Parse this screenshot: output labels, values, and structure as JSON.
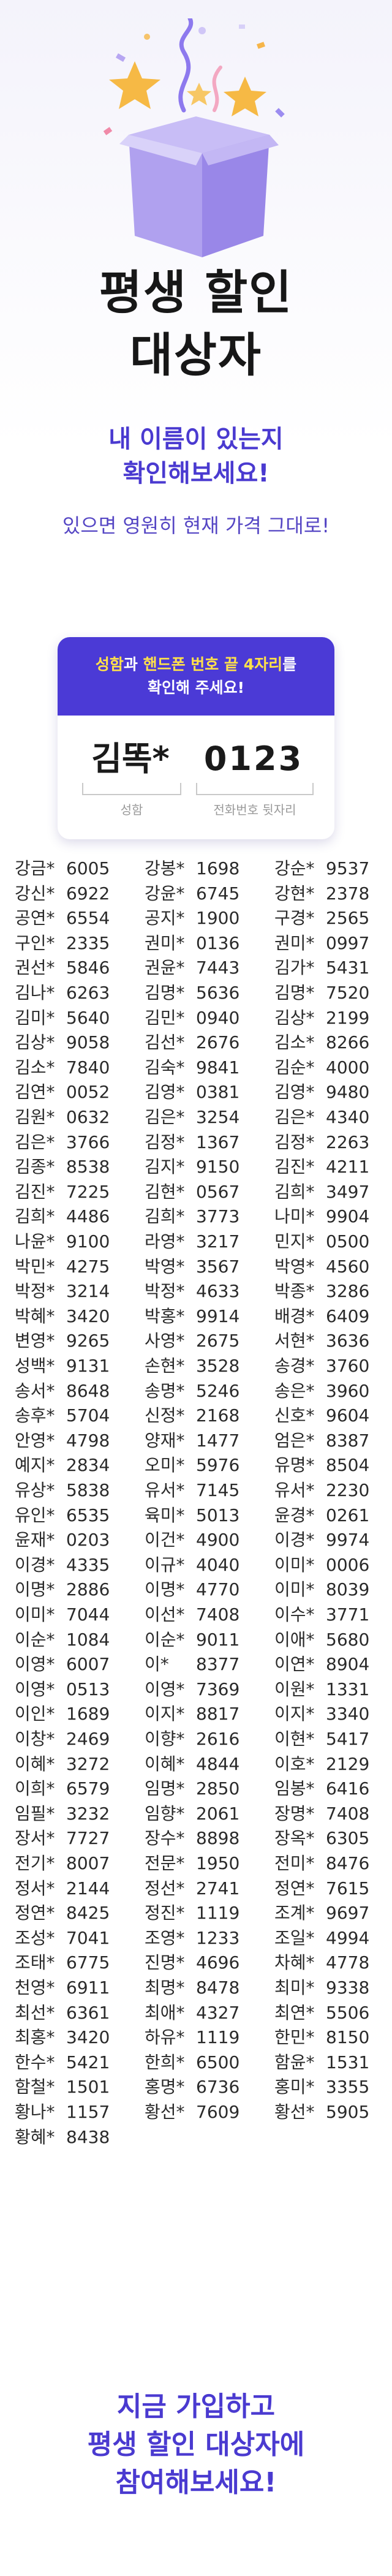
{
  "hero": {
    "title_line1": "평생 할인",
    "title_line2": "대상자",
    "subtitle_line1": "내 이름이 있는지",
    "subtitle_line2": "확인해보세요!",
    "note": "있으면 영원히 현재 가격 그대로!"
  },
  "card": {
    "header_part1": "성함",
    "header_part2": "과 ",
    "header_part3": "핸드폰 번호 끝 4자리",
    "header_part4": "를",
    "header_line2": "확인해 주세요!",
    "example_name": "김똑*",
    "example_number": "0123",
    "name_caption": "성함",
    "number_caption": "전화번호 뒷자리"
  },
  "entries": [
    [
      "강금*",
      "6005"
    ],
    [
      "강봉*",
      "1698"
    ],
    [
      "강순*",
      "9537"
    ],
    [
      "강신*",
      "6922"
    ],
    [
      "강윤*",
      "6745"
    ],
    [
      "강현*",
      "2378"
    ],
    [
      "공연*",
      "6554"
    ],
    [
      "공지*",
      "1900"
    ],
    [
      "구경*",
      "2565"
    ],
    [
      "구인*",
      "2335"
    ],
    [
      "권미*",
      "0136"
    ],
    [
      "권미*",
      "0997"
    ],
    [
      "권선*",
      "5846"
    ],
    [
      "권윤*",
      "7443"
    ],
    [
      "김가*",
      "5431"
    ],
    [
      "김나*",
      "6263"
    ],
    [
      "김명*",
      "5636"
    ],
    [
      "김명*",
      "7520"
    ],
    [
      "김미*",
      "5640"
    ],
    [
      "김민*",
      "0940"
    ],
    [
      "김상*",
      "2199"
    ],
    [
      "김상*",
      "9058"
    ],
    [
      "김선*",
      "2676"
    ],
    [
      "김소*",
      "8266"
    ],
    [
      "김소*",
      "7840"
    ],
    [
      "김숙*",
      "9841"
    ],
    [
      "김순*",
      "4000"
    ],
    [
      "김연*",
      "0052"
    ],
    [
      "김영*",
      "0381"
    ],
    [
      "김영*",
      "9480"
    ],
    [
      "김원*",
      "0632"
    ],
    [
      "김은*",
      "3254"
    ],
    [
      "김은*",
      "4340"
    ],
    [
      "김은*",
      "3766"
    ],
    [
      "김정*",
      "1367"
    ],
    [
      "김정*",
      "2263"
    ],
    [
      "김종*",
      "8538"
    ],
    [
      "김지*",
      "9150"
    ],
    [
      "김진*",
      "4211"
    ],
    [
      "김진*",
      "7225"
    ],
    [
      "김현*",
      "0567"
    ],
    [
      "김희*",
      "3497"
    ],
    [
      "김희*",
      "4486"
    ],
    [
      "김희*",
      "3773"
    ],
    [
      "나미*",
      "9904"
    ],
    [
      "나윤*",
      "9100"
    ],
    [
      "라영*",
      "3217"
    ],
    [
      "민지*",
      "0500"
    ],
    [
      "박민*",
      "4275"
    ],
    [
      "박영*",
      "3567"
    ],
    [
      "박영*",
      "4560"
    ],
    [
      "박정*",
      "3214"
    ],
    [
      "박정*",
      "4633"
    ],
    [
      "박종*",
      "3286"
    ],
    [
      "박혜*",
      "3420"
    ],
    [
      "박홍*",
      "9914"
    ],
    [
      "배경*",
      "6409"
    ],
    [
      "변영*",
      "9265"
    ],
    [
      "사영*",
      "2675"
    ],
    [
      "서현*",
      "3636"
    ],
    [
      "성백*",
      "9131"
    ],
    [
      "손현*",
      "3528"
    ],
    [
      "송경*",
      "3760"
    ],
    [
      "송서*",
      "8648"
    ],
    [
      "송명*",
      "5246"
    ],
    [
      "송은*",
      "3960"
    ],
    [
      "송후*",
      "5704"
    ],
    [
      "신정*",
      "2168"
    ],
    [
      "신호*",
      "9604"
    ],
    [
      "안영*",
      "4798"
    ],
    [
      "양재*",
      "1477"
    ],
    [
      "엄은*",
      "8387"
    ],
    [
      "예지*",
      "2834"
    ],
    [
      "오미*",
      "5976"
    ],
    [
      "유명*",
      "8504"
    ],
    [
      "유상*",
      "5838"
    ],
    [
      "유서*",
      "7145"
    ],
    [
      "유서*",
      "2230"
    ],
    [
      "유인*",
      "6535"
    ],
    [
      "육미*",
      "5013"
    ],
    [
      "윤경*",
      "0261"
    ],
    [
      "윤재*",
      "0203"
    ],
    [
      "이건*",
      "4900"
    ],
    [
      "이경*",
      "9974"
    ],
    [
      "이경*",
      "4335"
    ],
    [
      "이규*",
      "4040"
    ],
    [
      "이미*",
      "0006"
    ],
    [
      "이명*",
      "2886"
    ],
    [
      "이명*",
      "4770"
    ],
    [
      "이미*",
      "8039"
    ],
    [
      "이미*",
      "7044"
    ],
    [
      "이선*",
      "7408"
    ],
    [
      "이수*",
      "3771"
    ],
    [
      "이순*",
      "1084"
    ],
    [
      "이순*",
      "9011"
    ],
    [
      "이애*",
      "5680"
    ],
    [
      "이영*",
      "6007"
    ],
    [
      "이*",
      "8377"
    ],
    [
      "이연*",
      "8904"
    ],
    [
      "이영*",
      "0513"
    ],
    [
      "이영*",
      "7369"
    ],
    [
      "이원*",
      "1331"
    ],
    [
      "이인*",
      "1689"
    ],
    [
      "이지*",
      "8817"
    ],
    [
      "이지*",
      "3340"
    ],
    [
      "이창*",
      "2469"
    ],
    [
      "이향*",
      "2616"
    ],
    [
      "이현*",
      "5417"
    ],
    [
      "이혜*",
      "3272"
    ],
    [
      "이혜*",
      "4844"
    ],
    [
      "이호*",
      "2129"
    ],
    [
      "이희*",
      "6579"
    ],
    [
      "임명*",
      "2850"
    ],
    [
      "임봉*",
      "6416"
    ],
    [
      "임필*",
      "3232"
    ],
    [
      "임향*",
      "2061"
    ],
    [
      "장명*",
      "7408"
    ],
    [
      "장서*",
      "7727"
    ],
    [
      "장수*",
      "8898"
    ],
    [
      "장옥*",
      "6305"
    ],
    [
      "전기*",
      "8007"
    ],
    [
      "전문*",
      "1950"
    ],
    [
      "전미*",
      "8476"
    ],
    [
      "정서*",
      "2144"
    ],
    [
      "정선*",
      "2741"
    ],
    [
      "정연*",
      "7615"
    ],
    [
      "정연*",
      "8425"
    ],
    [
      "정진*",
      "1119"
    ],
    [
      "조계*",
      "9697"
    ],
    [
      "조성*",
      "7041"
    ],
    [
      "조영*",
      "1233"
    ],
    [
      "조일*",
      "4994"
    ],
    [
      "조태*",
      "6775"
    ],
    [
      "진명*",
      "4696"
    ],
    [
      "차혜*",
      "4778"
    ],
    [
      "천영*",
      "6911"
    ],
    [
      "최명*",
      "8478"
    ],
    [
      "최미*",
      "9338"
    ],
    [
      "최선*",
      "6361"
    ],
    [
      "최애*",
      "4327"
    ],
    [
      "최연*",
      "5506"
    ],
    [
      "최홍*",
      "3420"
    ],
    [
      "하유*",
      "1119"
    ],
    [
      "한민*",
      "8150"
    ],
    [
      "한수*",
      "5421"
    ],
    [
      "한희*",
      "6500"
    ],
    [
      "함윤*",
      "1531"
    ],
    [
      "함철*",
      "1501"
    ],
    [
      "홍명*",
      "6736"
    ],
    [
      "홍미*",
      "3355"
    ],
    [
      "황나*",
      "1157"
    ],
    [
      "황선*",
      "7609"
    ],
    [
      "황선*",
      "5905"
    ],
    [
      "황혜*",
      "8438"
    ]
  ],
  "footer": {
    "line1": "지금 가입하고",
    "line2": "평생 할인 대상자에",
    "line3": "참여해보세요!"
  },
  "colors": {
    "accent": "#4a3ad0",
    "highlight": "#ffe14a",
    "card_header": "#4b3ad6"
  }
}
